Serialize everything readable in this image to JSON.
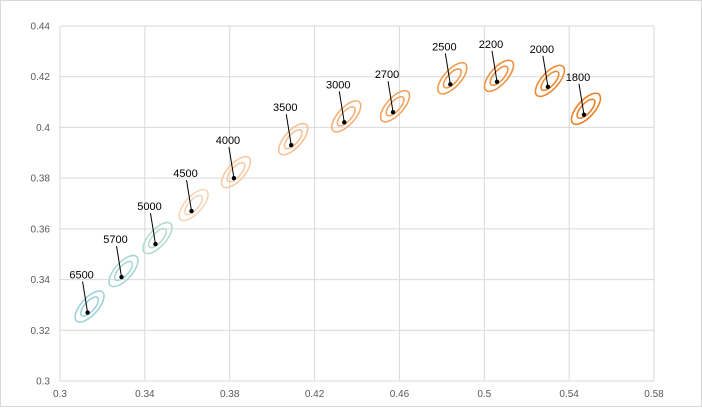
{
  "chart_data": {
    "type": "scatter",
    "title": "",
    "xlabel": "",
    "ylabel": "",
    "xlim": [
      0.3,
      0.58
    ],
    "ylim": [
      0.3,
      0.44
    ],
    "x_ticks": [
      "0.3",
      "0.34",
      "0.38",
      "0.42",
      "0.46",
      "0.5",
      "0.54",
      "0.58"
    ],
    "y_ticks": [
      "0.3",
      "0.32",
      "0.34",
      "0.36",
      "0.38",
      "0.4",
      "0.42",
      "0.44"
    ],
    "grid": true,
    "legend": "none",
    "points": [
      {
        "label": "6500",
        "x": 0.313,
        "y": 0.327,
        "color": "#9fd3dc"
      },
      {
        "label": "5700",
        "x": 0.329,
        "y": 0.341,
        "color": "#a9d8d2"
      },
      {
        "label": "5000",
        "x": 0.345,
        "y": 0.354,
        "color": "#b3dccb"
      },
      {
        "label": "4500",
        "x": 0.362,
        "y": 0.367,
        "color": "#f8d5b8"
      },
      {
        "label": "4000",
        "x": 0.382,
        "y": 0.38,
        "color": "#f7cba6"
      },
      {
        "label": "3500",
        "x": 0.409,
        "y": 0.393,
        "color": "#f6c095"
      },
      {
        "label": "3000",
        "x": 0.434,
        "y": 0.402,
        "color": "#f4b27b"
      },
      {
        "label": "2700",
        "x": 0.457,
        "y": 0.406,
        "color": "#f2a560"
      },
      {
        "label": "2500",
        "x": 0.484,
        "y": 0.417,
        "color": "#ef9b4e"
      },
      {
        "label": "2200",
        "x": 0.506,
        "y": 0.418,
        "color": "#ee9241"
      },
      {
        "label": "2000",
        "x": 0.53,
        "y": 0.416,
        "color": "#ec8a35"
      },
      {
        "label": "1800",
        "x": 0.547,
        "y": 0.405,
        "color": "#ea8228"
      }
    ]
  }
}
